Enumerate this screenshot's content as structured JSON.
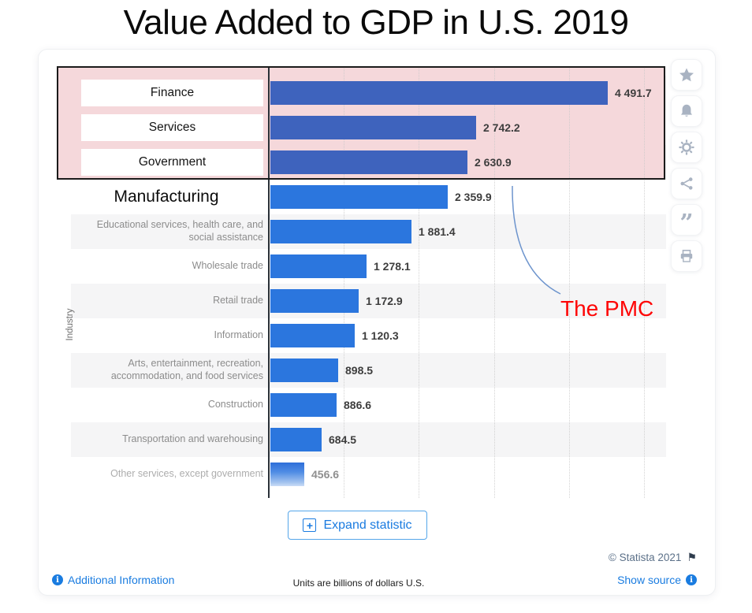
{
  "title": "Value Added to GDP in U.S. 2019",
  "chart_data": {
    "type": "bar",
    "orientation": "horizontal",
    "title": "Value Added to GDP in U.S. 2019",
    "ylabel": "Industry",
    "xlabel": "",
    "xlim": [
      0,
      5000
    ],
    "gridline_values": [
      1000,
      2000,
      3000,
      4000,
      5000
    ],
    "grid": "dotted-vertical",
    "categories": [
      "Finance",
      "Services",
      "Government",
      "Manufacturing",
      "Educational services, health care, and social assistance",
      "Wholesale trade",
      "Retail trade",
      "Information",
      "Arts, entertainment, recreation, accommodation, and food services",
      "Construction",
      "Transportation and warehousing",
      "Other services, except government"
    ],
    "values": [
      4491.7,
      2742.2,
      2630.9,
      2359.9,
      1881.4,
      1278.1,
      1172.9,
      1120.3,
      898.5,
      886.6,
      684.5,
      456.6
    ],
    "value_labels": [
      "4 491.7",
      "2 742.2",
      "2 630.9",
      "2 359.9",
      "1 881.4",
      "1 278.1",
      "1 172.9",
      "1 120.3",
      "898.5",
      "886.6",
      "684.5",
      "456.6"
    ],
    "highlighted_categories": [
      "Finance",
      "Services",
      "Government"
    ],
    "units_note": "Units are billions of dollars U.S."
  },
  "annotation": {
    "text": "The PMC"
  },
  "expand_button": {
    "label": "Expand statistic"
  },
  "footer": {
    "copyright": "© Statista 2021",
    "additional_information": "Additional Information",
    "units_note": "Units are billions of dollars U.S.",
    "show_source": "Show source"
  },
  "sidebar_icons": [
    "star",
    "bell",
    "gear",
    "share",
    "quote",
    "print"
  ],
  "icons": {
    "flag": "⚑",
    "plus": "+",
    "info": "i",
    "quote": "”"
  },
  "colors": {
    "bar_blue": "#2b76de",
    "highlighted_bar_blue": "#3e63bd",
    "highlight_pink": "#f5d8db",
    "annotation_red": "#fe0505",
    "link_blue": "#1a7ce0",
    "curve_blue": "#6d94cd"
  }
}
